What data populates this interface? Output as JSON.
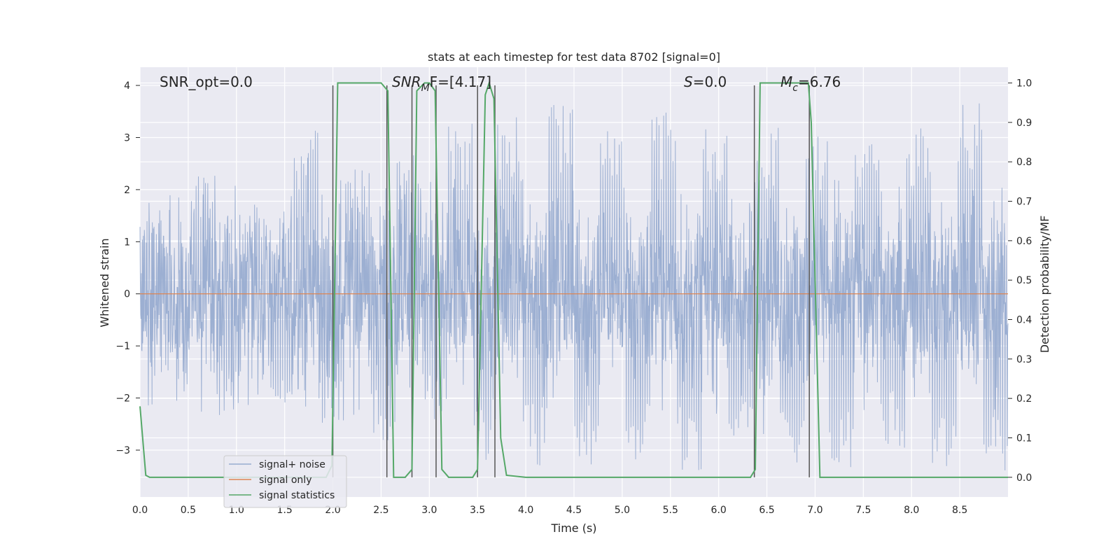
{
  "chart_data": {
    "type": "line",
    "title": "stats at each timestep for test data 8702 [signal=0]",
    "xlabel": "Time (s)",
    "ylabel": "Whitened strain",
    "y2label": "Detection probability/MF",
    "xlim": [
      0,
      9.0
    ],
    "ylim": [
      -3.9,
      4.35
    ],
    "y2lim": [
      -0.05,
      1.04
    ],
    "xticks": [
      "0.0",
      "0.5",
      "1.0",
      "1.5",
      "2.0",
      "2.5",
      "3.0",
      "3.5",
      "4.0",
      "4.5",
      "5.0",
      "5.5",
      "6.0",
      "6.5",
      "7.0",
      "7.5",
      "8.0",
      "8.5"
    ],
    "yticks": [
      "4",
      "3",
      "2",
      "1",
      "0",
      "−1",
      "−2",
      "−3"
    ],
    "y2ticks": [
      "1.0",
      "0.9",
      "0.8",
      "0.7",
      "0.6",
      "0.5",
      "0.4",
      "0.3",
      "0.2",
      "0.1",
      "0.0"
    ],
    "grid": true,
    "legend_position": "lower-left",
    "annotations": {
      "snr_opt": "SNR_opt=0.0",
      "snr_mf_name": "SNR",
      "snr_mf_sub": "M",
      "snr_mf_tail": "F=[4.17]",
      "s_name": "S",
      "s_value": "=0.0",
      "mc_name": "M",
      "mc_sub": "c",
      "mc_value": "=6.76"
    },
    "series": [
      {
        "name": "signal+ noise",
        "color": "#98acd0",
        "note_shape": "dense noise band",
        "values_sample": [
          1.5,
          -1.5,
          2.3,
          -2.4,
          1.8,
          -2.1,
          3.2,
          -2.6,
          2.4,
          -3.0,
          2.7,
          -2.5,
          3.3,
          -3.3,
          3.5,
          -3.5,
          3.7,
          -3.4,
          3.3,
          -3.2,
          3.5,
          -3.4,
          3.2,
          -3.0,
          3.2,
          -3.3,
          3.3,
          -3.4,
          3.0,
          -3.0,
          3.4,
          -3.4,
          3.7,
          -3.5
        ]
      },
      {
        "name": "signal only",
        "color": "#dd8452",
        "x": [
          0.0,
          9.0
        ],
        "values": [
          0.0,
          0.0
        ]
      },
      {
        "name": "signal statistics",
        "color": "#55a868",
        "axis": "right",
        "x": [
          0.0,
          0.06,
          0.1,
          0.5,
          1.0,
          1.5,
          1.93,
          1.99,
          2.05,
          2.5,
          2.57,
          2.63,
          2.75,
          2.82,
          2.87,
          2.95,
          3.0,
          3.06,
          3.13,
          3.2,
          3.45,
          3.5,
          3.58,
          3.62,
          3.67,
          3.74,
          3.8,
          4.0,
          5.0,
          6.0,
          6.33,
          6.38,
          6.43,
          6.93,
          6.96,
          7.05,
          7.5,
          8.0,
          9.0
        ],
        "values": [
          0.18,
          0.005,
          0.0,
          0.0,
          0.0,
          0.0,
          0.0,
          0.03,
          1.0,
          1.0,
          0.98,
          0.0,
          0.0,
          0.02,
          0.98,
          1.0,
          1.0,
          0.98,
          0.02,
          0.0,
          0.0,
          0.02,
          0.97,
          1.0,
          0.96,
          0.1,
          0.005,
          0.0,
          0.0,
          0.0,
          0.0,
          0.02,
          1.0,
          1.0,
          0.9,
          0.0,
          0.0,
          0.0,
          0.0
        ]
      }
    ],
    "vertical_markers": [
      2.0,
      2.56,
      2.82,
      3.07,
      3.5,
      3.68,
      6.37,
      6.94
    ]
  }
}
